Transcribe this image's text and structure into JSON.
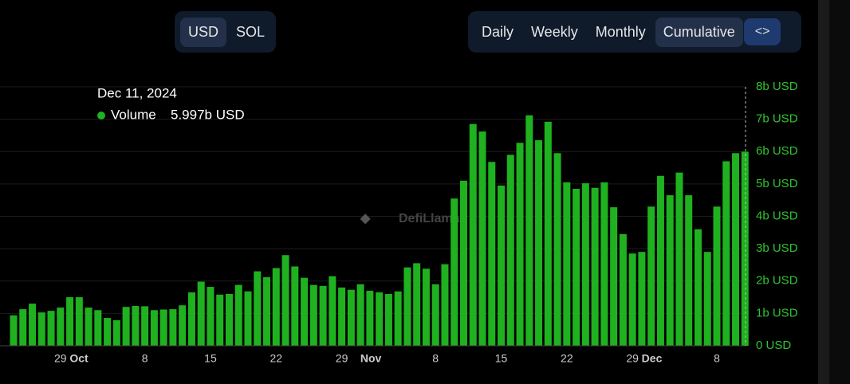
{
  "controls": {
    "currency": [
      "USD",
      "SOL"
    ],
    "periods": [
      "Daily",
      "Weekly",
      "Monthly",
      "Cumulative"
    ],
    "embed": "<>"
  },
  "watermark": "DefiLlama",
  "tooltip": {
    "date": "Dec 11, 2024",
    "series": "Volume",
    "value": "5.997b USD"
  },
  "chart_data": {
    "type": "bar",
    "color": "#1fb11f",
    "categories": [
      null,
      null,
      null,
      null,
      null,
      "29",
      null,
      "Oct",
      null,
      null,
      null,
      null,
      null,
      null,
      "8",
      null,
      null,
      null,
      null,
      null,
      null,
      "15",
      null,
      null,
      null,
      null,
      null,
      null,
      "22",
      null,
      null,
      null,
      null,
      null,
      null,
      "29",
      null,
      null,
      "Nov",
      null,
      null,
      null,
      null,
      null,
      null,
      "8",
      null,
      null,
      null,
      null,
      null,
      null,
      "15",
      null,
      null,
      null,
      null,
      null,
      null,
      "22",
      null,
      null,
      null,
      null,
      null,
      null,
      "29",
      null,
      "Dec",
      null,
      null,
      null,
      null,
      null,
      null,
      "8",
      null,
      null,
      null
    ],
    "values": [
      0.94,
      1.13,
      1.3,
      1.03,
      1.08,
      1.18,
      1.5,
      1.5,
      1.18,
      1.1,
      0.86,
      0.79,
      1.2,
      1.23,
      1.22,
      1.1,
      1.12,
      1.13,
      1.25,
      1.65,
      1.98,
      1.82,
      1.58,
      1.6,
      1.88,
      1.68,
      2.3,
      2.12,
      2.4,
      2.8,
      2.45,
      2.1,
      1.88,
      1.85,
      2.15,
      1.8,
      1.73,
      1.9,
      1.7,
      1.65,
      1.6,
      1.68,
      2.42,
      2.55,
      2.38,
      1.9,
      2.52,
      4.55,
      5.1,
      6.85,
      6.62,
      5.68,
      4.95,
      5.9,
      6.27,
      7.12,
      6.35,
      6.92,
      5.95,
      5.05,
      4.85,
      5.02,
      4.88,
      5.05,
      4.28,
      3.45,
      2.85,
      2.9,
      4.3,
      5.25,
      4.65,
      5.35,
      4.65,
      3.6,
      2.9,
      4.3,
      5.7,
      5.95,
      5.997
    ],
    "ylim": [
      0,
      8
    ],
    "yticks": [
      {
        "value": 0,
        "label": "0 USD"
      },
      {
        "value": 1,
        "label": "1b USD"
      },
      {
        "value": 2,
        "label": "2b USD"
      },
      {
        "value": 3,
        "label": "3b USD"
      },
      {
        "value": 4,
        "label": "4b USD"
      },
      {
        "value": 5,
        "label": "5b USD"
      },
      {
        "value": 6,
        "label": "6b USD"
      },
      {
        "value": 7,
        "label": "7b USD"
      },
      {
        "value": 8,
        "label": "8b USD"
      }
    ],
    "grid": true
  }
}
